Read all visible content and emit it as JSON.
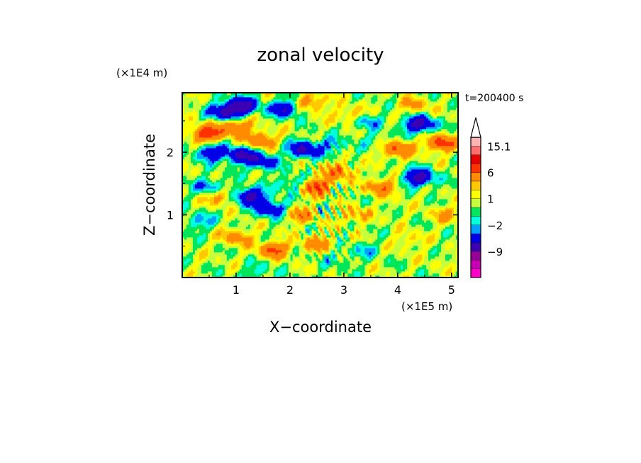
{
  "chart_data": {
    "type": "heatmap",
    "title": "zonal velocity",
    "xlabel": "X−coordinate",
    "ylabel": "Z−coordinate",
    "x_unit": "(×1E5 m)",
    "y_unit": "(×1E4 m)",
    "time_label": "t=200400 s",
    "xlim": [
      0,
      5.12
    ],
    "ylim": [
      0,
      2.95
    ],
    "x_ticks": [
      1,
      2,
      3,
      4,
      5
    ],
    "x_tick_labels": [
      "1",
      "2",
      "3",
      "4",
      "5"
    ],
    "y_ticks": [
      1,
      2
    ],
    "y_tick_labels": [
      "1",
      "2"
    ],
    "colorbar": {
      "levels": [
        -15,
        -12,
        -9,
        -6,
        -3,
        -2,
        -1,
        0,
        1,
        2,
        3,
        6,
        9,
        12,
        15.1
      ],
      "colors": [
        "#ff00c8",
        "#c800b4",
        "#960096",
        "#3c00b4",
        "#0000e6",
        "#00a0ff",
        "#00ffdc",
        "#00e65a",
        "#c8ff3c",
        "#ffff00",
        "#ffc800",
        "#ff8c00",
        "#ff3200",
        "#e60000",
        "#ff6e6e",
        "#ffb4b4"
      ],
      "labels": [
        {
          "value": 15.1,
          "text": "15.1"
        },
        {
          "value": 6,
          "text": "6"
        },
        {
          "value": 1,
          "text": "1"
        },
        {
          "value": -2,
          "text": "−2"
        },
        {
          "value": -9,
          "text": "−9"
        }
      ],
      "extend": "max"
    },
    "features": [
      {
        "x": 0.8,
        "z": 2.65,
        "u": -7
      },
      {
        "x": 1.1,
        "z": 2.75,
        "u": -8
      },
      {
        "x": 1.9,
        "z": 2.7,
        "u": -6
      },
      {
        "x": 2.4,
        "z": 2.8,
        "u": 4
      },
      {
        "x": 3.1,
        "z": 2.6,
        "u": 3
      },
      {
        "x": 3.4,
        "z": 2.5,
        "u": -3
      },
      {
        "x": 4.4,
        "z": 2.45,
        "u": -8
      },
      {
        "x": 4.3,
        "z": 2.75,
        "u": 3
      },
      {
        "x": 4.8,
        "z": 2.15,
        "u": 7
      },
      {
        "x": 4.0,
        "z": 2.05,
        "u": 6
      },
      {
        "x": 4.4,
        "z": 1.6,
        "u": -8
      },
      {
        "x": 3.7,
        "z": 1.45,
        "u": 5
      },
      {
        "x": 0.45,
        "z": 2.3,
        "u": 8
      },
      {
        "x": 1.0,
        "z": 2.4,
        "u": 6
      },
      {
        "x": 1.45,
        "z": 2.2,
        "u": 5
      },
      {
        "x": 0.55,
        "z": 2.0,
        "u": -6
      },
      {
        "x": 1.1,
        "z": 1.95,
        "u": -7
      },
      {
        "x": 1.5,
        "z": 1.85,
        "u": -5
      },
      {
        "x": 2.25,
        "z": 2.05,
        "u": -7
      },
      {
        "x": 2.75,
        "z": 2.1,
        "u": -3
      },
      {
        "x": 2.9,
        "z": 1.7,
        "u": 5
      },
      {
        "x": 2.5,
        "z": 1.45,
        "u": 7
      },
      {
        "x": 1.25,
        "z": 1.3,
        "u": -8
      },
      {
        "x": 1.65,
        "z": 1.1,
        "u": -6
      },
      {
        "x": 0.5,
        "z": 1.45,
        "u": -4
      },
      {
        "x": 2.0,
        "z": 1.5,
        "u": -3
      },
      {
        "x": 0.7,
        "z": 1.3,
        "u": 4
      },
      {
        "x": 1.0,
        "z": 0.65,
        "u": 4
      },
      {
        "x": 2.2,
        "z": 1.0,
        "u": 4
      },
      {
        "x": 3.2,
        "z": 1.0,
        "u": 3
      },
      {
        "x": 4.2,
        "z": 0.6,
        "u": 2
      },
      {
        "x": 1.7,
        "z": 0.45,
        "u": 6
      },
      {
        "x": 2.5,
        "z": 0.55,
        "u": 4
      },
      {
        "x": 3.4,
        "z": 0.45,
        "u": -2
      },
      {
        "x": 2.9,
        "z": 0.3,
        "u": -1.5
      },
      {
        "x": 0.3,
        "z": 0.9,
        "u": -3
      },
      {
        "x": 0.2,
        "z": 0.3,
        "u": 0.5
      },
      {
        "x": 4.7,
        "z": 0.3,
        "u": 0.5
      },
      {
        "x": 1.4,
        "z": 0.1,
        "u": -2
      },
      {
        "x": 3.9,
        "z": 1.1,
        "u": 0.5
      },
      {
        "x": 4.9,
        "z": 1.0,
        "u": 3
      },
      {
        "x": 3.6,
        "z": 2.2,
        "u": -1.5
      },
      {
        "x": 0.2,
        "z": 2.7,
        "u": 0.3
      }
    ]
  }
}
